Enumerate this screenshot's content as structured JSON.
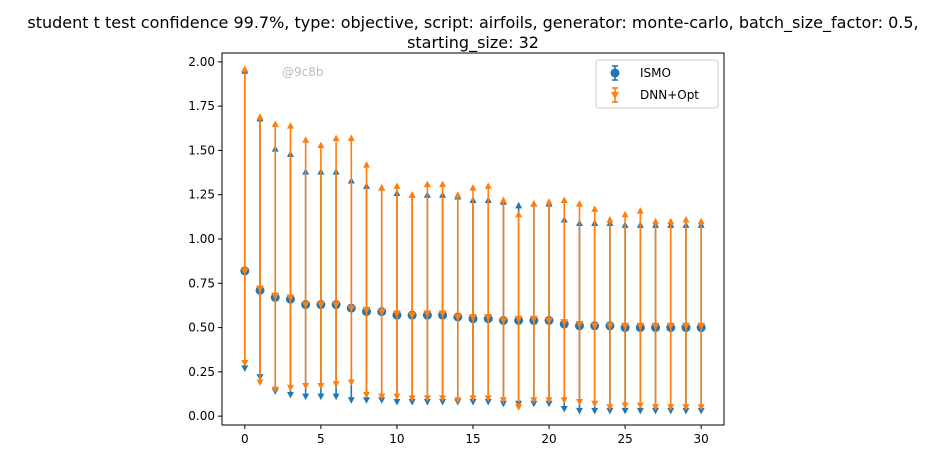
{
  "chart_data": {
    "type": "errorbar",
    "title_line1": "student t test confidence 99.7%, type: objective, script: airfoils, generator: monte-carlo, batch_size_factor: 0.5,",
    "title_line2": "starting_size: 32",
    "watermark": "@9c8b",
    "xlabel": "",
    "ylabel": "",
    "xlim": [
      -1.5,
      31.5
    ],
    "ylim": [
      -0.05,
      2.05
    ],
    "x_ticks": [
      0,
      5,
      10,
      15,
      20,
      25,
      30
    ],
    "x_tick_labels": [
      "0",
      "5",
      "10",
      "15",
      "20",
      "25",
      "30"
    ],
    "y_ticks": [
      0.0,
      0.25,
      0.5,
      0.75,
      1.0,
      1.25,
      1.5,
      1.75,
      2.0
    ],
    "y_tick_labels": [
      "0.00",
      "0.25",
      "0.50",
      "0.75",
      "1.00",
      "1.25",
      "1.50",
      "1.75",
      "2.00"
    ],
    "grid": false,
    "legend_position": "top-right",
    "x": [
      0,
      1,
      2,
      3,
      4,
      5,
      6,
      7,
      8,
      9,
      10,
      11,
      12,
      13,
      14,
      15,
      16,
      17,
      18,
      19,
      20,
      21,
      22,
      23,
      24,
      25,
      26,
      27,
      28,
      29,
      30
    ],
    "series": [
      {
        "name": "ISMO",
        "color": "#1f77b4",
        "marker": "circle",
        "mean": [
          0.82,
          0.71,
          0.67,
          0.66,
          0.63,
          0.63,
          0.63,
          0.61,
          0.59,
          0.59,
          0.57,
          0.57,
          0.57,
          0.57,
          0.56,
          0.55,
          0.55,
          0.54,
          0.54,
          0.54,
          0.54,
          0.52,
          0.51,
          0.51,
          0.51,
          0.5,
          0.5,
          0.5,
          0.5,
          0.5,
          0.5
        ],
        "upper": [
          1.95,
          1.68,
          1.51,
          1.48,
          1.38,
          1.38,
          1.38,
          1.33,
          1.3,
          1.29,
          1.26,
          1.25,
          1.25,
          1.25,
          1.24,
          1.22,
          1.22,
          1.21,
          1.19,
          1.2,
          1.2,
          1.11,
          1.09,
          1.09,
          1.09,
          1.08,
          1.08,
          1.08,
          1.08,
          1.08,
          1.08
        ],
        "lower": [
          0.27,
          0.22,
          0.14,
          0.12,
          0.11,
          0.11,
          0.11,
          0.09,
          0.09,
          0.09,
          0.08,
          0.08,
          0.08,
          0.08,
          0.08,
          0.08,
          0.08,
          0.07,
          0.07,
          0.07,
          0.07,
          0.04,
          0.03,
          0.03,
          0.03,
          0.03,
          0.03,
          0.03,
          0.03,
          0.03,
          0.03
        ]
      },
      {
        "name": "DNN+Opt",
        "color": "#ff7f0e",
        "marker": "triangle",
        "mean": [
          0.82,
          0.72,
          0.68,
          0.67,
          0.63,
          0.63,
          0.63,
          0.61,
          0.6,
          0.59,
          0.58,
          0.57,
          0.58,
          0.58,
          0.56,
          0.56,
          0.56,
          0.54,
          0.55,
          0.55,
          0.54,
          0.53,
          0.52,
          0.51,
          0.51,
          0.51,
          0.51,
          0.51,
          0.51,
          0.51,
          0.51
        ],
        "upper": [
          1.96,
          1.69,
          1.65,
          1.64,
          1.56,
          1.53,
          1.57,
          1.57,
          1.42,
          1.29,
          1.3,
          1.25,
          1.31,
          1.31,
          1.25,
          1.29,
          1.3,
          1.22,
          1.14,
          1.2,
          1.21,
          1.22,
          1.2,
          1.17,
          1.11,
          1.14,
          1.16,
          1.1,
          1.1,
          1.11,
          1.1
        ],
        "lower": [
          0.3,
          0.19,
          0.15,
          0.16,
          0.17,
          0.17,
          0.18,
          0.19,
          0.12,
          0.11,
          0.11,
          0.1,
          0.1,
          0.1,
          0.09,
          0.1,
          0.1,
          0.09,
          0.05,
          0.09,
          0.09,
          0.09,
          0.08,
          0.07,
          0.05,
          0.06,
          0.06,
          0.05,
          0.05,
          0.05,
          0.05
        ]
      }
    ]
  }
}
